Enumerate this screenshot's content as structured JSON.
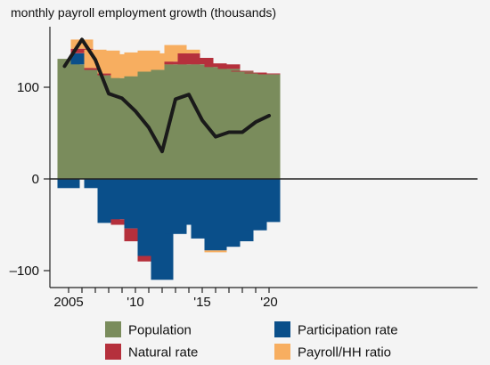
{
  "chart_data": {
    "type": "bar",
    "title": "monthly payroll employment growth (thousands)",
    "bar_mode": "stacked",
    "x": [
      2005,
      2006,
      2007,
      2008,
      2009,
      2010,
      2011,
      2012,
      2013,
      2014,
      2015,
      2016,
      2017,
      2018,
      2019,
      2020
    ],
    "xtick_values": [
      2005,
      2010,
      2015,
      2020
    ],
    "xtick_labels": [
      "2005",
      "'10",
      "'15",
      "'20"
    ],
    "ylim": [
      -115,
      160
    ],
    "yticks": [
      -100,
      0,
      100
    ],
    "ytick_labels": [
      "–100",
      "0",
      "100"
    ],
    "series": [
      {
        "name": "Population",
        "color": "#7a8c5c",
        "values": [
          131,
          125,
          119,
          113,
          110,
          112,
          117,
          119,
          125,
          125,
          125,
          122,
          120,
          117,
          115,
          114
        ]
      },
      {
        "name": "Participation rate",
        "color": "#0a4f8a",
        "values": [
          -10,
          12,
          -10,
          -48,
          -44,
          -54,
          -84,
          -110,
          -60,
          -50,
          -65,
          -78,
          -74,
          -68,
          -56,
          -47
        ]
      },
      {
        "name": "Natural rate",
        "color": "#b5303c",
        "values": [
          0,
          5,
          2,
          2,
          -6,
          -14,
          -6,
          0,
          3,
          12,
          7,
          4,
          5,
          1,
          1,
          1
        ]
      },
      {
        "name": "Payroll/HH ratio",
        "color": "#f7ae60",
        "values": [
          0,
          10,
          20,
          25,
          26,
          26,
          23,
          18,
          18,
          4,
          0,
          -2,
          0,
          0,
          0,
          0
        ]
      }
    ],
    "line": {
      "color": "#1a1a1a",
      "x": [
        2004.7,
        2006,
        2007,
        2008,
        2009,
        2010,
        2011,
        2012,
        2013,
        2014,
        2015,
        2016,
        2017,
        2018,
        2019,
        2020
      ],
      "values": [
        123,
        152,
        130,
        93,
        88,
        74,
        56,
        30,
        87,
        92,
        64,
        46,
        51,
        51,
        62,
        69
      ]
    },
    "legend": {
      "placement": "bottom",
      "columns": 2
    },
    "zero_line": true,
    "grid": false
  }
}
